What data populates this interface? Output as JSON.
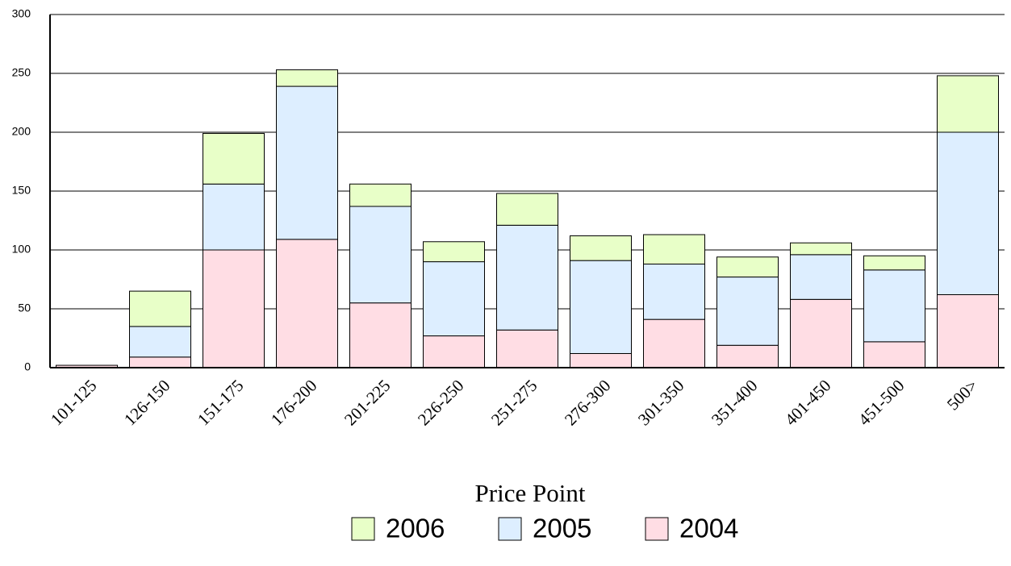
{
  "chart_data": {
    "type": "stacked_bar",
    "x_label": "Price Point",
    "categories": [
      "101-125",
      "126-150",
      "151-175",
      "176-200",
      "201-225",
      "226-250",
      "251-275",
      "276-300",
      "301-350",
      "351-400",
      "401-450",
      "451-500",
      "500>"
    ],
    "series": [
      {
        "name": "2004",
        "color": "#ffdde4",
        "values": [
          2,
          9,
          100,
          109,
          55,
          27,
          32,
          12,
          41,
          19,
          58,
          22,
          62
        ]
      },
      {
        "name": "2005",
        "color": "#ddeeff",
        "values": [
          0,
          26,
          56,
          130,
          82,
          63,
          89,
          79,
          47,
          58,
          38,
          61,
          138
        ]
      },
      {
        "name": "2006",
        "color": "#e8ffc8",
        "values": [
          0,
          30,
          43,
          14,
          19,
          17,
          27,
          21,
          25,
          17,
          10,
          12,
          48
        ]
      }
    ],
    "ylim": [
      0,
      300
    ],
    "yticks": [
      0,
      50,
      100,
      150,
      200,
      250,
      300
    ],
    "grid": true
  }
}
